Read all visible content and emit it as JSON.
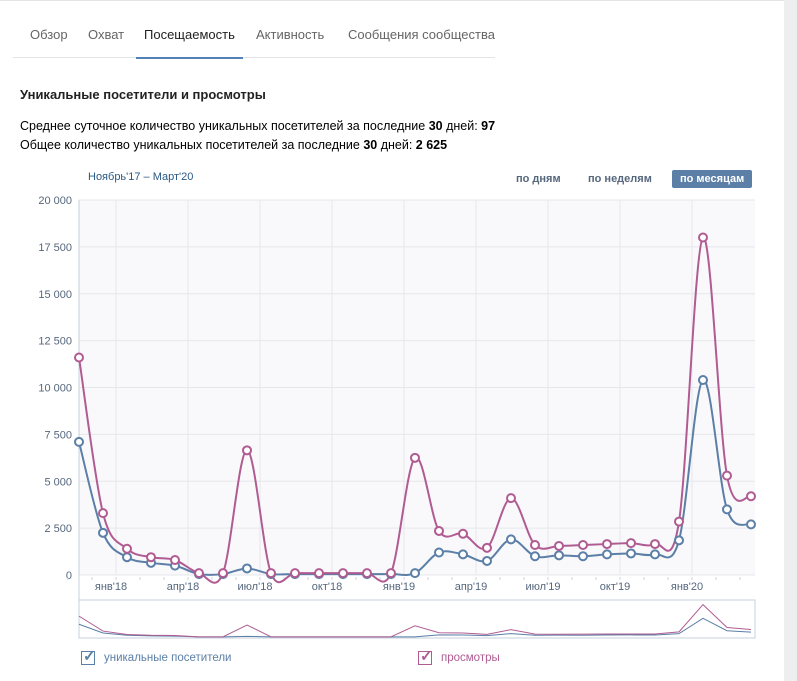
{
  "tabs": [
    "Обзор",
    "Охват",
    "Посещаемость",
    "Активность",
    "Сообщения сообщества"
  ],
  "active_tab": 2,
  "title": "Уникальные посетители и просмотры",
  "stats": {
    "line1_prefix": "Среднее суточное количество уникальных посетителей за последние ",
    "line1_days": "30",
    "line1_mid": " дней: ",
    "line1_value": "97",
    "line2_prefix": "Общее количество уникальных посетителей за последние ",
    "line2_days": "30",
    "line2_mid": " дней: ",
    "line2_value": "2 625"
  },
  "range": "Ноябрь'17 – Март'20",
  "period_buttons": [
    "по дням",
    "по неделям",
    "по месяцам"
  ],
  "active_period": 2,
  "colors": {
    "visitors": "#5b7fa6",
    "views": "#b05c92"
  },
  "chart_data": {
    "type": "line",
    "x": [
      "ноя'17",
      "дек'17",
      "янв'18",
      "фев'18",
      "мар'18",
      "апр'18",
      "май'18",
      "июн'18",
      "июл'18",
      "авг'18",
      "сен'18",
      "окт'18",
      "ноя'18",
      "дек'18",
      "янв'19",
      "фев'19",
      "мар'19",
      "апр'19",
      "май'19",
      "июн'19",
      "июл'19",
      "авг'19",
      "сен'19",
      "окт'19",
      "ноя'19",
      "дек'19",
      "янв'20",
      "фев'20",
      "мар'20"
    ],
    "x_tick_labels": [
      {
        "i": 2,
        "label": "янв'18"
      },
      {
        "i": 5,
        "label": "апр'18"
      },
      {
        "i": 8,
        "label": "июл'18"
      },
      {
        "i": 11,
        "label": "окт'18"
      },
      {
        "i": 14,
        "label": "янв'19"
      },
      {
        "i": 17,
        "label": "апр'19"
      },
      {
        "i": 20,
        "label": "июл'19"
      },
      {
        "i": 23,
        "label": "окт'19"
      },
      {
        "i": 26,
        "label": "янв'20"
      }
    ],
    "y_ticks": [
      "0",
      "2 500",
      "5 000",
      "7 500",
      "10 000",
      "12 500",
      "15 000",
      "17 500",
      "20 000"
    ],
    "ylim": [
      0,
      20000
    ],
    "series": [
      {
        "name": "уникальные посетители",
        "values": [
          7100,
          2250,
          950,
          650,
          500,
          50,
          50,
          350,
          50,
          50,
          50,
          50,
          50,
          50,
          100,
          1200,
          1100,
          750,
          1900,
          1000,
          1050,
          1000,
          1100,
          1150,
          1100,
          1850,
          10400,
          3500,
          2700
        ]
      },
      {
        "name": "просмотры",
        "values": [
          11600,
          3300,
          1400,
          950,
          800,
          100,
          100,
          6650,
          100,
          100,
          100,
          100,
          100,
          100,
          6250,
          2350,
          2200,
          1450,
          4100,
          1600,
          1550,
          1600,
          1650,
          1700,
          1650,
          2850,
          18000,
          5300,
          4200
        ]
      }
    ],
    "legend": "bottom"
  }
}
